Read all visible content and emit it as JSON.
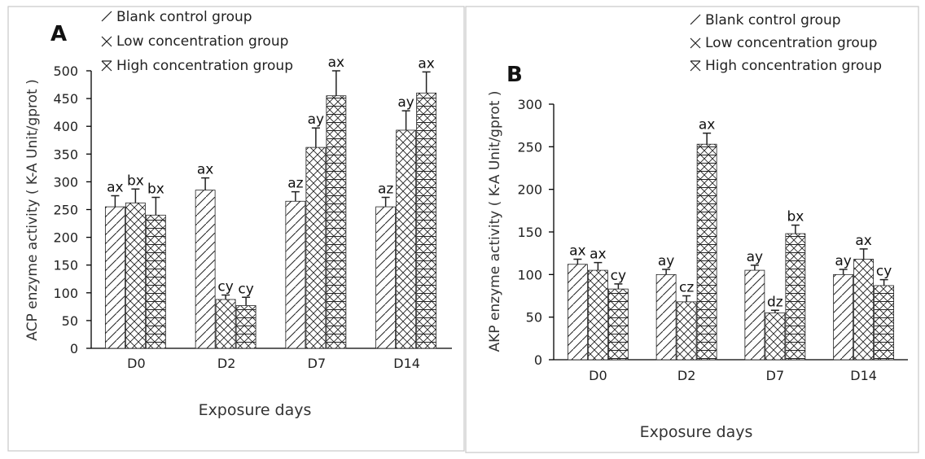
{
  "chart_data": [
    {
      "panel_letter": "A",
      "type": "bar",
      "categories": [
        "D0",
        "D2",
        "D7",
        "D14"
      ],
      "series": [
        {
          "name": "Blank control group",
          "values": [
            255,
            285,
            265,
            255
          ],
          "errors": [
            20,
            22,
            17,
            17
          ],
          "labels": [
            "ax",
            "ax",
            "az",
            "az"
          ]
        },
        {
          "name": "Low concentration group",
          "values": [
            262,
            88,
            362,
            393
          ],
          "errors": [
            25,
            8,
            35,
            35
          ],
          "labels": [
            "bx",
            "cy",
            "ay",
            "ay"
          ]
        },
        {
          "name": "High concentration group",
          "values": [
            240,
            77,
            455,
            460
          ],
          "errors": [
            32,
            15,
            45,
            38
          ],
          "labels": [
            "bx",
            "cy",
            "ax",
            "ax"
          ]
        }
      ],
      "xlabel": "Exposure days",
      "ylabel": "ACP enzyme activity ( K-A Unit/gprot )",
      "ylim": [
        0,
        500
      ],
      "yticks": [
        0,
        50,
        100,
        150,
        200,
        250,
        300,
        350,
        400,
        450,
        500
      ],
      "legend_position": "top"
    },
    {
      "panel_letter": "B",
      "type": "bar",
      "categories": [
        "D0",
        "D2",
        "D7",
        "D14"
      ],
      "series": [
        {
          "name": "Blank control group",
          "values": [
            112,
            100,
            105,
            100
          ],
          "errors": [
            6,
            6,
            6,
            6
          ],
          "labels": [
            "ax",
            "ay",
            "ay",
            "ay"
          ]
        },
        {
          "name": "Low concentration group",
          "values": [
            105,
            68,
            55,
            118
          ],
          "errors": [
            9,
            7,
            3,
            12
          ],
          "labels": [
            "ax",
            "cz",
            "dz",
            "ax"
          ]
        },
        {
          "name": "High concentration group",
          "values": [
            83,
            253,
            148,
            87
          ],
          "errors": [
            6,
            13,
            10,
            7
          ],
          "labels": [
            "cy",
            "ax",
            "bx",
            "cy"
          ]
        }
      ],
      "xlabel": "Exposure days",
      "ylabel": "AKP enzyme activity ( K-A Unit/gprot )",
      "ylim": [
        0,
        300
      ],
      "yticks": [
        0,
        50,
        100,
        150,
        200,
        250,
        300
      ],
      "legend_position": "top-right"
    }
  ]
}
